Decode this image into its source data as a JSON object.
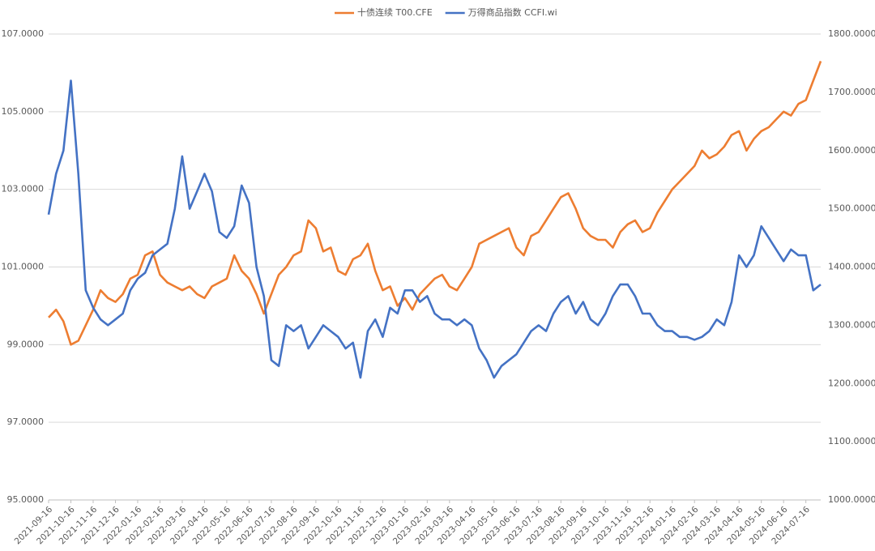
{
  "chart_data": {
    "type": "line",
    "categories": [
      "2021-09-16",
      null,
      null,
      "2021-10-16",
      null,
      null,
      "2021-11-16",
      null,
      null,
      "2021-12-16",
      null,
      null,
      "2022-01-16",
      null,
      null,
      "2022-02-16",
      null,
      null,
      "2022-03-16",
      null,
      null,
      "2022-04-16",
      null,
      null,
      "2022-05-16",
      null,
      null,
      "2022-06-16",
      null,
      null,
      "2022-07-16",
      null,
      null,
      "2022-08-16",
      null,
      null,
      "2022-09-16",
      null,
      null,
      "2022-10-16",
      null,
      null,
      "2022-11-16",
      null,
      null,
      "2022-12-16",
      null,
      null,
      "2023-01-16",
      null,
      null,
      "2023-02-16",
      null,
      null,
      "2023-03-16",
      null,
      null,
      "2023-04-16",
      null,
      null,
      "2023-05-16",
      null,
      null,
      "2023-06-16",
      null,
      null,
      "2023-07-16",
      null,
      null,
      "2023-08-16",
      null,
      null,
      "2023-09-16",
      null,
      null,
      "2023-10-16",
      null,
      null,
      "2023-11-16",
      null,
      null,
      "2023-12-16",
      null,
      null,
      "2024-01-16",
      null,
      null,
      "2024-02-16",
      null,
      null,
      "2024-03-16",
      null,
      null,
      "2024-04-16",
      null,
      null,
      "2024-05-16",
      null,
      null,
      "2024-06-16",
      null,
      null,
      "2024-07-16",
      null,
      null
    ],
    "series": [
      {
        "name": "十债连续 T00.CFE",
        "color": "#ed7d31",
        "axis": "y",
        "values": [
          99.7,
          99.9,
          99.6,
          99.0,
          99.1,
          99.5,
          99.9,
          100.4,
          100.2,
          100.1,
          100.3,
          100.7,
          100.8,
          101.3,
          101.4,
          100.8,
          100.6,
          100.5,
          100.4,
          100.5,
          100.3,
          100.2,
          100.5,
          100.6,
          100.7,
          101.3,
          100.9,
          100.7,
          100.3,
          99.8,
          100.3,
          100.8,
          101.0,
          101.3,
          101.4,
          102.2,
          102.0,
          101.4,
          101.5,
          100.9,
          100.8,
          101.2,
          101.3,
          101.6,
          100.9,
          100.4,
          100.5,
          100.0,
          100.2,
          99.9,
          100.3,
          100.5,
          100.7,
          100.8,
          100.5,
          100.4,
          100.7,
          101.0,
          101.6,
          101.7,
          101.8,
          101.9,
          102.0,
          101.5,
          101.3,
          101.8,
          101.9,
          102.2,
          102.5,
          102.8,
          102.9,
          102.5,
          102.0,
          101.8,
          101.7,
          101.7,
          101.5,
          101.9,
          102.1,
          102.2,
          101.9,
          102.0,
          102.4,
          102.7,
          103.0,
          103.2,
          103.4,
          103.6,
          104.0,
          103.8,
          103.9,
          104.1,
          104.4,
          104.5,
          104.0,
          104.3,
          104.5,
          104.6,
          104.8,
          105.0,
          104.9,
          105.2,
          105.3,
          105.8,
          106.3
        ]
      },
      {
        "name": "万得商品指数 CCFI.wi",
        "color": "#4472c4",
        "axis": "y2",
        "values": [
          1490,
          1560,
          1600,
          1720,
          1560,
          1360,
          1330,
          1310,
          1300,
          1310,
          1320,
          1360,
          1380,
          1390,
          1420,
          1430,
          1440,
          1500,
          1590,
          1500,
          1530,
          1560,
          1530,
          1460,
          1450,
          1470,
          1540,
          1510,
          1400,
          1350,
          1240,
          1230,
          1300,
          1290,
          1300,
          1260,
          1280,
          1300,
          1290,
          1280,
          1260,
          1270,
          1210,
          1290,
          1310,
          1280,
          1330,
          1320,
          1360,
          1360,
          1340,
          1350,
          1320,
          1310,
          1310,
          1300,
          1310,
          1300,
          1260,
          1240,
          1210,
          1230,
          1240,
          1250,
          1270,
          1290,
          1300,
          1290,
          1320,
          1340,
          1350,
          1320,
          1340,
          1310,
          1300,
          1320,
          1350,
          1370,
          1370,
          1350,
          1320,
          1320,
          1300,
          1290,
          1290,
          1280,
          1280,
          1275,
          1280,
          1290,
          1310,
          1300,
          1340,
          1420,
          1400,
          1420,
          1470,
          1450,
          1430,
          1410,
          1430,
          1420,
          1420,
          1360,
          1370
        ]
      }
    ],
    "ylim": [
      95,
      107
    ],
    "yticks": [
      {
        "value": 95,
        "label": "95.0000"
      },
      {
        "value": 97,
        "label": "97.0000"
      },
      {
        "value": 99,
        "label": "99.0000"
      },
      {
        "value": 101,
        "label": "101.0000"
      },
      {
        "value": 103,
        "label": "103.0000"
      },
      {
        "value": 105,
        "label": "105.0000"
      },
      {
        "value": 107,
        "label": "107.0000"
      }
    ],
    "y2lim": [
      1000,
      1800
    ],
    "y2ticks": [
      {
        "value": 1000,
        "label": "1000.0000"
      },
      {
        "value": 1100,
        "label": "1100.0000"
      },
      {
        "value": 1200,
        "label": "1200.0000"
      },
      {
        "value": 1300,
        "label": "1300.0000"
      },
      {
        "value": 1400,
        "label": "1400.0000"
      },
      {
        "value": 1500,
        "label": "1500.0000"
      },
      {
        "value": 1600,
        "label": "1600.0000"
      },
      {
        "value": 1700,
        "label": "1700.0000"
      },
      {
        "value": 1800,
        "label": "1800.0000"
      }
    ],
    "grid": true,
    "legend": "top"
  }
}
